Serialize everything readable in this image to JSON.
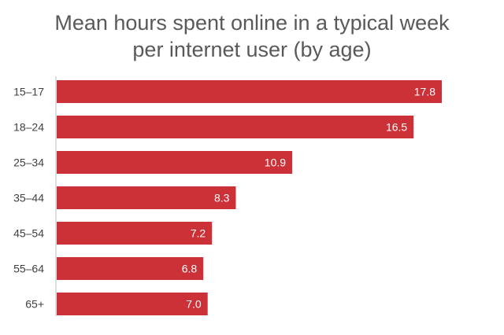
{
  "chart_data": {
    "type": "bar",
    "orientation": "horizontal",
    "title_lines": [
      "Mean hours spent online in a typical week",
      "per internet user (by age)"
    ],
    "categories": [
      "15–17",
      "18–24",
      "25–34",
      "35–44",
      "45–54",
      "55–64",
      "65+"
    ],
    "values": [
      17.8,
      16.5,
      10.9,
      8.3,
      7.2,
      6.8,
      7.0
    ],
    "value_labels": [
      "17.8",
      "16.5",
      "10.9",
      "8.3",
      "7.2",
      "6.8",
      "7.0"
    ],
    "xlim": [
      0,
      17.8
    ],
    "grid": false,
    "legend": "none",
    "bar_color": "#cc3138",
    "axis_color": "#bfbfbf"
  }
}
